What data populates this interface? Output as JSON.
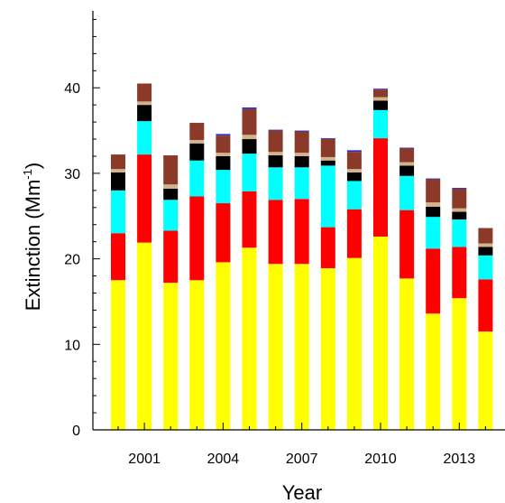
{
  "chart_data": {
    "type": "bar",
    "stacked": true,
    "xlabel": "Year",
    "ylabel": "Extinction (Mm",
    "ylabel_superscript": "-1",
    "ylabel_close": ")",
    "ylim": [
      0,
      49
    ],
    "y_ticks": [
      0,
      10,
      20,
      30,
      40
    ],
    "x_tick_labels": [
      "2001",
      "2004",
      "2007",
      "2010",
      "2013"
    ],
    "x_tick_positions": [
      2001,
      2004,
      2007,
      2010,
      2013
    ],
    "categories": [
      2000,
      2001,
      2002,
      2003,
      2004,
      2005,
      2006,
      2007,
      2008,
      2009,
      2010,
      2011,
      2012,
      2013,
      2014
    ],
    "series": [
      {
        "color": "#ffff00",
        "values": [
          17.5,
          21.9,
          17.2,
          17.5,
          19.6,
          21.3,
          19.4,
          19.4,
          18.9,
          20.1,
          22.6,
          17.7,
          13.6,
          15.4,
          11.5
        ]
      },
      {
        "color": "#ff0000",
        "values": [
          5.5,
          10.3,
          6.1,
          9.8,
          6.9,
          6.6,
          7.5,
          7.6,
          4.8,
          5.7,
          11.5,
          8.0,
          7.6,
          6.0,
          6.1
        ]
      },
      {
        "color": "#00ffff",
        "values": [
          5.0,
          3.9,
          3.6,
          4.2,
          3.9,
          4.4,
          3.8,
          3.7,
          7.2,
          3.3,
          3.3,
          4.0,
          3.7,
          3.2,
          2.8
        ]
      },
      {
        "color": "#000000",
        "values": [
          2.1,
          1.9,
          1.3,
          2.0,
          1.6,
          1.7,
          1.4,
          1.3,
          0.6,
          1.0,
          1.1,
          1.2,
          1.2,
          0.9,
          1.0
        ]
      },
      {
        "color": "#d2b48c",
        "values": [
          0.4,
          0.4,
          0.5,
          0.4,
          0.4,
          0.5,
          0.4,
          0.4,
          0.4,
          0.4,
          0.4,
          0.4,
          0.5,
          0.4,
          0.4
        ]
      },
      {
        "color": "#8b3a2a",
        "values": [
          1.7,
          2.1,
          3.4,
          2.0,
          2.0,
          3.0,
          2.5,
          2.5,
          2.1,
          2.0,
          0.9,
          1.6,
          2.7,
          2.3,
          1.8
        ]
      },
      {
        "color": "#3030c0",
        "values": [
          0.0,
          0.0,
          0.0,
          0.0,
          0.2,
          0.2,
          0.1,
          0.1,
          0.1,
          0.2,
          0.1,
          0.1,
          0.1,
          0.1,
          0.0
        ]
      }
    ],
    "grid": false,
    "legend": "none"
  }
}
